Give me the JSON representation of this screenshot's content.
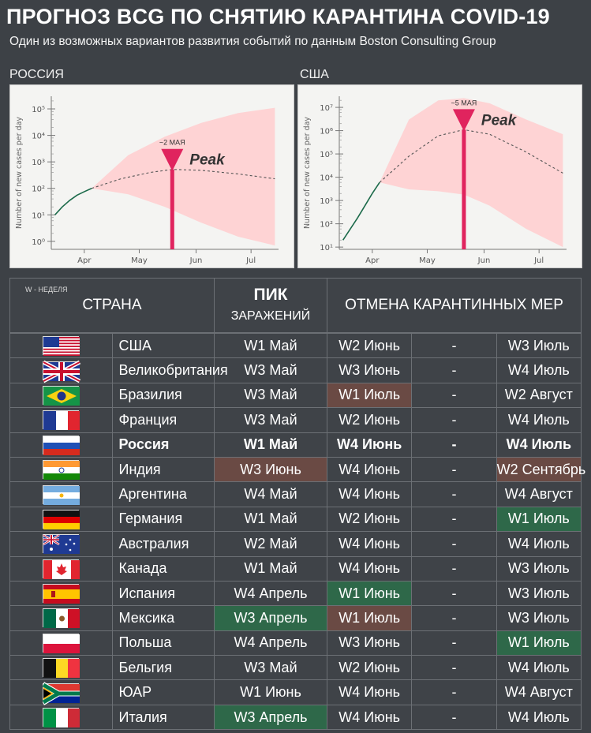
{
  "header": {
    "title": "ПРОГНОЗ BCG ПО СНЯТИЮ КАРАНТИНА COVID-19",
    "subtitle": "Один из возможных вариантов развития событий по данным Boston Consulting Group"
  },
  "chart_data": [
    {
      "type": "line",
      "panel_label": "РОССИЯ",
      "ylabel": "Number of new cases per day",
      "yscale": "log",
      "ylim": [
        0.5,
        300000
      ],
      "y_ticks": [
        "10⁰",
        "10¹",
        "10²",
        "10³",
        "10⁴",
        "10⁵"
      ],
      "x_ticks": [
        "Apr",
        "May",
        "Jun",
        "Jul"
      ],
      "actual": {
        "x": [
          0,
          4,
          8,
          12,
          16,
          20
        ],
        "y": [
          10,
          20,
          35,
          55,
          75,
          100
        ]
      },
      "forecast": {
        "x": [
          20,
          36,
          52,
          64,
          80,
          100,
          120
        ],
        "y": [
          100,
          230,
          400,
          520,
          480,
          350,
          230
        ]
      },
      "band_upper": {
        "x": [
          20,
          40,
          60,
          80,
          100,
          120
        ],
        "y": [
          100,
          1800,
          9000,
          30000,
          70000,
          110000
        ]
      },
      "band_lower": {
        "x": [
          20,
          40,
          60,
          80,
          100,
          120
        ],
        "y": [
          100,
          60,
          20,
          5,
          1.5,
          0.7
        ]
      },
      "peak": {
        "x": 64,
        "label": "Peak",
        "date_label": "~2 МАЯ"
      }
    },
    {
      "type": "line",
      "panel_label": "США",
      "ylabel": "Number of new cases per day",
      "yscale": "log",
      "ylim": [
        8,
        30000000
      ],
      "y_ticks": [
        "10¹",
        "10²",
        "10³",
        "10⁴",
        "10⁵",
        "10⁶",
        "10⁷"
      ],
      "x_ticks": [
        "Apr",
        "May",
        "Jun",
        "Jul"
      ],
      "actual": {
        "x": [
          0,
          4,
          8,
          12,
          16,
          20
        ],
        "y": [
          20,
          60,
          180,
          600,
          2000,
          6000
        ]
      },
      "forecast": {
        "x": [
          20,
          36,
          52,
          66,
          80,
          100,
          120
        ],
        "y": [
          6000,
          80000,
          600000,
          1100000,
          700000,
          120000,
          15000
        ]
      },
      "band_upper": {
        "x": [
          20,
          36,
          52,
          66,
          80,
          100,
          120
        ],
        "y": [
          6000,
          3000000,
          20000000,
          25000000,
          15000000,
          3000000,
          700000
        ]
      },
      "band_lower": {
        "x": [
          20,
          36,
          52,
          66,
          80,
          100,
          120
        ],
        "y": [
          6000,
          3000,
          2500,
          1800,
          600,
          60,
          10
        ]
      },
      "peak": {
        "x": 66,
        "label": "Peak",
        "date_label": "~5 МАЯ"
      }
    }
  ],
  "table": {
    "week_note": "W - НЕДЕЛЯ",
    "col_country": "СТРАНА",
    "col_peak_top": "ПИК",
    "col_peak_bottom": "ЗАРАЖЕНИЙ",
    "col_lift": "ОТМЕНА КАРАНТИННЫХ МЕР",
    "rows": [
      {
        "flag": "usa-flag-icon",
        "country": "США",
        "peak": "W1 Май",
        "from": "W2 Июнь",
        "dash": "-",
        "to": "W3 Июль"
      },
      {
        "flag": "uk-flag-icon",
        "country": "Великобритания",
        "peak": "W3 Май",
        "from": "W3 Июнь",
        "dash": "-",
        "to": "W4 Июль"
      },
      {
        "flag": "brazil-flag-icon",
        "country": "Бразилия",
        "peak": "W3 Май",
        "from": "W1 Июль",
        "dash": "-",
        "to": "W2 Август",
        "from_hl": "red"
      },
      {
        "flag": "france-flag-icon",
        "country": "Франция",
        "peak": "W3 Май",
        "from": "W2 Июнь",
        "dash": "-",
        "to": "W4 Июль"
      },
      {
        "flag": "russia-flag-icon",
        "country": "Россия",
        "peak": "W1 Май",
        "from": "W4 Июнь",
        "dash": "-",
        "to": "W4 Июль",
        "bold": true
      },
      {
        "flag": "india-flag-icon",
        "country": "Индия",
        "peak": "W3 Июнь",
        "from": "W4 Июнь",
        "dash": "-",
        "to": "W2 Сентябрь",
        "peak_hl": "red",
        "to_hl": "red"
      },
      {
        "flag": "argentina-flag-icon",
        "country": "Аргентина",
        "peak": "W4 Май",
        "from": "W4 Июнь",
        "dash": "-",
        "to": "W4 Август"
      },
      {
        "flag": "germany-flag-icon",
        "country": "Германия",
        "peak": "W1 Май",
        "from": "W2 Июнь",
        "dash": "-",
        "to": "W1 Июль",
        "to_hl": "green"
      },
      {
        "flag": "australia-flag-icon",
        "country": "Австралия",
        "peak": "W2 Май",
        "from": "W4 Июнь",
        "dash": "-",
        "to": "W4 Июль"
      },
      {
        "flag": "canada-flag-icon",
        "country": "Канада",
        "peak": "W1 Май",
        "from": "W4 Июнь",
        "dash": "-",
        "to": "W3 Июль"
      },
      {
        "flag": "spain-flag-icon",
        "country": "Испания",
        "peak": "W4 Апрель",
        "from": "W1 Июнь",
        "dash": "-",
        "to": "W3 Июль",
        "from_hl": "green"
      },
      {
        "flag": "mexico-flag-icon",
        "country": "Мексика",
        "peak": "W3 Апрель",
        "from": "W1 Июль",
        "dash": "-",
        "to": "W3 Июль",
        "peak_hl": "green",
        "from_hl": "red"
      },
      {
        "flag": "poland-flag-icon",
        "country": "Польша",
        "peak": "W4 Апрель",
        "from": "W3 Июнь",
        "dash": "-",
        "to": "W1 Июль",
        "to_hl": "green"
      },
      {
        "flag": "belgium-flag-icon",
        "country": "Бельгия",
        "peak": "W3 Май",
        "from": "W2 Июнь",
        "dash": "-",
        "to": "W4 Июль"
      },
      {
        "flag": "south-africa-flag-icon",
        "country": "ЮАР",
        "peak": "W1 Июнь",
        "from": "W4 Июнь",
        "dash": "-",
        "to": "W4 Август"
      },
      {
        "flag": "italy-flag-icon",
        "country": "Италия",
        "peak": "W3 Апрель",
        "from": "W4 Июнь",
        "dash": "-",
        "to": "W4 Июль",
        "peak_hl": "green"
      }
    ]
  },
  "colors": {
    "background": "#3d4146",
    "band_fill": "#ffcfd0",
    "peak_marker": "#e0245e",
    "highlight_red": "#6a4a44",
    "highlight_green": "#2e6849"
  }
}
